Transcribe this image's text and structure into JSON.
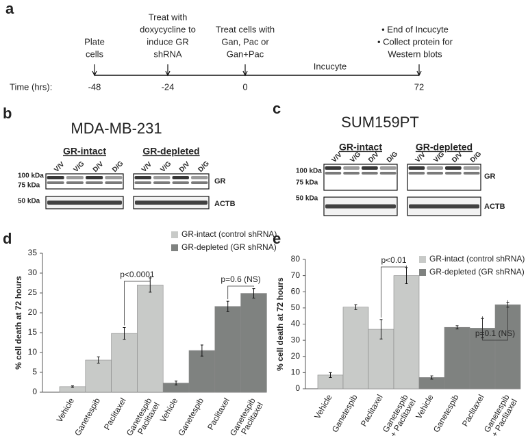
{
  "panel_a": {
    "label": "a",
    "time_label": "Time (hrs):",
    "span_label": "Incucyte",
    "events": [
      {
        "time": "-48",
        "lines": [
          "Plate",
          "cells"
        ]
      },
      {
        "time": "-24",
        "lines": [
          "Treat with",
          "doxycycline to",
          "induce GR",
          "shRNA"
        ]
      },
      {
        "time": "0",
        "lines": [
          "Treat cells with",
          "Gan, Pac or",
          "Gan+Pac"
        ]
      },
      {
        "time": "72",
        "lines": [
          "• End of Incucyte",
          "• Collect protein for",
          "Western blots"
        ]
      }
    ]
  },
  "panel_b": {
    "label": "b",
    "title": "MDA-MB-231",
    "groups": [
      {
        "name": "GR-intact",
        "lanes": [
          "V/V",
          "V/G",
          "D/V",
          "D/G"
        ]
      },
      {
        "name": "GR-depleted",
        "lanes": [
          "V/V",
          "V/G",
          "D/V",
          "D/G"
        ]
      }
    ],
    "markers": [
      "100 kDa",
      "75 kDa",
      "50 kDa"
    ],
    "bands": [
      "GR",
      "ACTB"
    ]
  },
  "panel_c": {
    "label": "c",
    "title": "SUM159PT",
    "groups": [
      {
        "name": "GR-intact",
        "lanes": [
          "V/V",
          "V/G",
          "D/V",
          "D/G"
        ]
      },
      {
        "name": "GR-depleted",
        "lanes": [
          "V/V",
          "V/G",
          "D/V",
          "D/G"
        ]
      }
    ],
    "markers": [
      "100 kDa",
      "75 kDa",
      "50 kDa"
    ],
    "bands": [
      "GR",
      "ACTB"
    ]
  },
  "chart_data": [
    {
      "type": "bar",
      "label": "d",
      "y_label": "% cell death at 72 hours",
      "categories": [
        [
          "Vehicle"
        ],
        [
          "Ganetespib"
        ],
        [
          "Paclitaxel"
        ],
        [
          "Ganetespib",
          "+ Paclitaxel"
        ]
      ],
      "series": [
        {
          "name": "GR-intact (control shRNA)",
          "color": "#c8cac8",
          "values": [
            1.4,
            8.1,
            14.8,
            27
          ],
          "errors": [
            0.2,
            0.8,
            1.5,
            1.8
          ]
        },
        {
          "name": "GR-depleted (GR shRNA)",
          "color": "#7f8280",
          "values": [
            2.3,
            10.5,
            21.6,
            24.9
          ],
          "errors": [
            0.5,
            1.4,
            1.3,
            1.2
          ]
        }
      ],
      "ylim": [
        0,
        35
      ],
      "yticks": [
        0,
        5,
        10,
        15,
        20,
        25,
        30,
        35
      ],
      "annotations": [
        "p<0.0001",
        "p=0.6 (NS)"
      ]
    },
    {
      "type": "bar",
      "label": "e",
      "y_label": "% cell death at 72 hours",
      "categories": [
        [
          "Vehicle"
        ],
        [
          "Ganetespib"
        ],
        [
          "Paclitaxel"
        ],
        [
          "Ganetespib",
          "+ Paclitaxel"
        ]
      ],
      "series": [
        {
          "name": "GR-intact (control shRNA)",
          "color": "#c8cac8",
          "values": [
            8.5,
            50.5,
            36.8,
            70
          ],
          "errors": [
            1.5,
            1.5,
            6,
            5
          ]
        },
        {
          "name": "GR-depleted (GR shRNA)",
          "color": "#7f8280",
          "values": [
            7,
            38,
            37.5,
            52
          ],
          "errors": [
            1,
            1,
            6,
            1.5
          ]
        }
      ],
      "ylim": [
        0,
        80
      ],
      "yticks": [
        0,
        10,
        20,
        30,
        40,
        50,
        60,
        70,
        80
      ],
      "annotations": [
        "p<0.01",
        "p=0.1 (NS)"
      ]
    }
  ]
}
